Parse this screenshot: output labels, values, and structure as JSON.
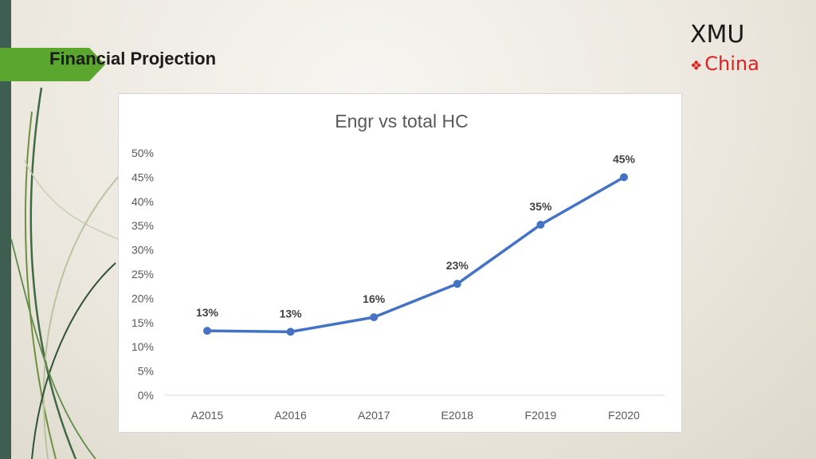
{
  "slide": {
    "title": "Financial Projection",
    "brand": "XMU",
    "brand_sub": "China",
    "accent_green": "#5aa62f",
    "brand_red": "#e02020"
  },
  "chart_data": {
    "type": "line",
    "title": "Engr vs total HC",
    "categories": [
      "A2015",
      "A2016",
      "A2017",
      "E2018",
      "F2019",
      "F2020"
    ],
    "values": [
      13.3,
      13.1,
      16.1,
      23.0,
      35.2,
      45.0
    ],
    "data_labels": [
      "13%",
      "13%",
      "16%",
      "23%",
      "35%",
      "45%"
    ],
    "ylim": [
      0,
      50
    ],
    "yticks": [
      "0%",
      "5%",
      "10%",
      "15%",
      "20%",
      "25%",
      "30%",
      "35%",
      "40%",
      "45%",
      "50%"
    ],
    "xlabel": "",
    "ylabel": "",
    "grid": false,
    "legend": "none",
    "line_color": "#4472c4"
  }
}
